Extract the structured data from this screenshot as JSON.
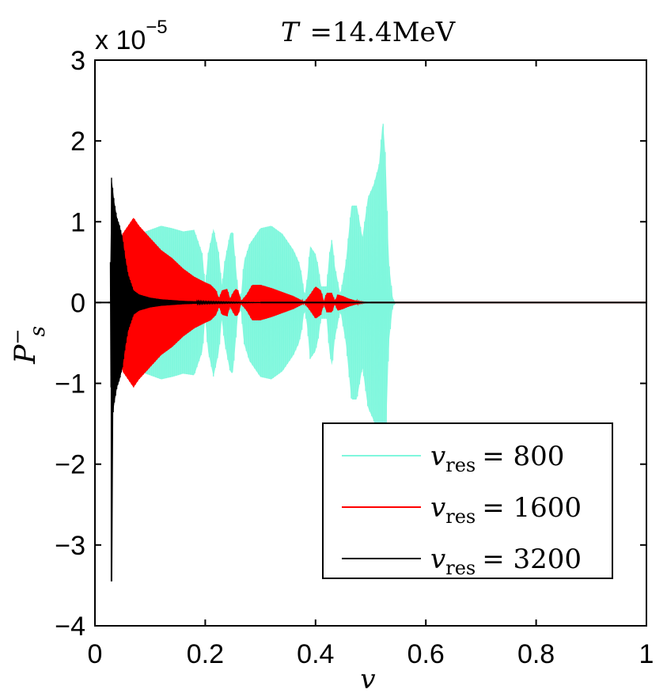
{
  "chart_data": {
    "type": "line",
    "title": "T =14.4MeV",
    "title_parts": {
      "var": "T",
      "rest": "=14.4MeV"
    },
    "xlabel": "v",
    "ylabel": {
      "base": "P",
      "sup": "−",
      "sub": "s"
    },
    "y_multiplier": {
      "prefix": "x 10",
      "exponent": "−5"
    },
    "xlim": [
      0,
      1
    ],
    "ylim": [
      -4,
      3
    ],
    "y_scale_factor": 1e-05,
    "grid": false,
    "legend_position": "lower-right",
    "x_ticks": [
      {
        "value": 0,
        "label": "0"
      },
      {
        "value": 0.2,
        "label": "0.2"
      },
      {
        "value": 0.4,
        "label": "0.4"
      },
      {
        "value": 0.6,
        "label": "0.6"
      },
      {
        "value": 0.8,
        "label": "0.8"
      },
      {
        "value": 1,
        "label": "1"
      }
    ],
    "y_ticks": [
      {
        "value": -4,
        "label": "−4"
      },
      {
        "value": -3,
        "label": "−3"
      },
      {
        "value": -2,
        "label": "−2"
      },
      {
        "value": -1,
        "label": "−1"
      },
      {
        "value": 0,
        "label": "0"
      },
      {
        "value": 1,
        "label": "1"
      },
      {
        "value": 2,
        "label": "2"
      },
      {
        "value": 3,
        "label": "3"
      }
    ],
    "series": [
      {
        "name": "v_res = 800",
        "legend": {
          "var": "v",
          "sub": "res",
          "eq": "= 800"
        },
        "color": "#7ff7dd",
        "envelope": [
          [
            0.06,
            0.3
          ],
          [
            0.08,
            0.85
          ],
          [
            0.1,
            0.9
          ],
          [
            0.12,
            0.95
          ],
          [
            0.14,
            0.92
          ],
          [
            0.16,
            0.88
          ],
          [
            0.18,
            0.9
          ],
          [
            0.195,
            0.6
          ],
          [
            0.2,
            0.2
          ],
          [
            0.205,
            0.6
          ],
          [
            0.215,
            0.92
          ],
          [
            0.225,
            0.6
          ],
          [
            0.23,
            0.2
          ],
          [
            0.235,
            0.5
          ],
          [
            0.245,
            0.85
          ],
          [
            0.25,
            0.88
          ],
          [
            0.255,
            0.5
          ],
          [
            0.26,
            0.1
          ],
          [
            0.265,
            0.1
          ],
          [
            0.27,
            0.5
          ],
          [
            0.28,
            0.72
          ],
          [
            0.3,
            0.92
          ],
          [
            0.32,
            0.95
          ],
          [
            0.34,
            0.85
          ],
          [
            0.36,
            0.65
          ],
          [
            0.37,
            0.5
          ],
          [
            0.375,
            0.35
          ],
          [
            0.38,
            0.08
          ],
          [
            0.385,
            0.3
          ],
          [
            0.39,
            0.7
          ],
          [
            0.4,
            0.6
          ],
          [
            0.405,
            0.45
          ],
          [
            0.41,
            0.2
          ],
          [
            0.42,
            0.2
          ],
          [
            0.425,
            0.6
          ],
          [
            0.43,
            0.8
          ],
          [
            0.435,
            0.45
          ],
          [
            0.445,
            0.1
          ],
          [
            0.455,
            0.5
          ],
          [
            0.465,
            1.2
          ],
          [
            0.475,
            1.2
          ],
          [
            0.485,
            0.8
          ],
          [
            0.495,
            1.3
          ],
          [
            0.505,
            1.45
          ],
          [
            0.515,
            1.7
          ],
          [
            0.522,
            2.27
          ],
          [
            0.527,
            1.8
          ],
          [
            0.533,
            0.5
          ],
          [
            0.54,
            0.05
          ],
          [
            0.545,
            0
          ]
        ]
      },
      {
        "name": "v_res = 1600",
        "legend": {
          "var": "v",
          "sub": "res",
          "eq": "= 1600"
        },
        "color": "#ff0000",
        "envelope": [
          [
            0.04,
            0.6
          ],
          [
            0.05,
            0.85
          ],
          [
            0.06,
            0.95
          ],
          [
            0.07,
            1.05
          ],
          [
            0.08,
            0.95
          ],
          [
            0.1,
            0.8
          ],
          [
            0.12,
            0.65
          ],
          [
            0.14,
            0.55
          ],
          [
            0.16,
            0.42
          ],
          [
            0.18,
            0.32
          ],
          [
            0.2,
            0.25
          ],
          [
            0.21,
            0.22
          ],
          [
            0.22,
            0.15
          ],
          [
            0.225,
            0.05
          ],
          [
            0.23,
            0.15
          ],
          [
            0.24,
            0.17
          ],
          [
            0.245,
            0.05
          ],
          [
            0.25,
            0.12
          ],
          [
            0.255,
            0.17
          ],
          [
            0.26,
            0.15
          ],
          [
            0.265,
            0.02
          ],
          [
            0.275,
            0.1
          ],
          [
            0.285,
            0.22
          ],
          [
            0.3,
            0.22
          ],
          [
            0.32,
            0.18
          ],
          [
            0.34,
            0.13
          ],
          [
            0.36,
            0.08
          ],
          [
            0.38,
            0.01
          ],
          [
            0.39,
            0.1
          ],
          [
            0.4,
            0.2
          ],
          [
            0.41,
            0.15
          ],
          [
            0.415,
            0.02
          ],
          [
            0.42,
            0.12
          ],
          [
            0.43,
            0.12
          ],
          [
            0.435,
            0.02
          ],
          [
            0.44,
            0.1
          ],
          [
            0.45,
            0.08
          ],
          [
            0.46,
            0.05
          ],
          [
            0.47,
            0.03
          ],
          [
            0.48,
            0.015
          ],
          [
            0.49,
            0.005
          ],
          [
            0.5,
            0
          ]
        ]
      },
      {
        "name": "v_res = 3200",
        "legend": {
          "var": "v",
          "sub": "res",
          "eq": "= 3200"
        },
        "color": "#000000",
        "envelope": [
          [
            0.028,
            0.5
          ],
          [
            0.03,
            1.55
          ],
          [
            0.035,
            1.25
          ],
          [
            0.04,
            1.05
          ],
          [
            0.045,
            0.95
          ],
          [
            0.05,
            0.8
          ],
          [
            0.055,
            0.55
          ],
          [
            0.06,
            0.35
          ],
          [
            0.07,
            0.15
          ],
          [
            0.08,
            0.1
          ],
          [
            0.09,
            0.08
          ],
          [
            0.1,
            0.06
          ],
          [
            0.12,
            0.04
          ],
          [
            0.14,
            0.03
          ],
          [
            0.16,
            0.02
          ],
          [
            0.2,
            0.01
          ],
          [
            0.25,
            0.005
          ],
          [
            0.3,
            0
          ]
        ],
        "spike_min": {
          "x": 0.03,
          "y": -3.45
        }
      }
    ]
  }
}
